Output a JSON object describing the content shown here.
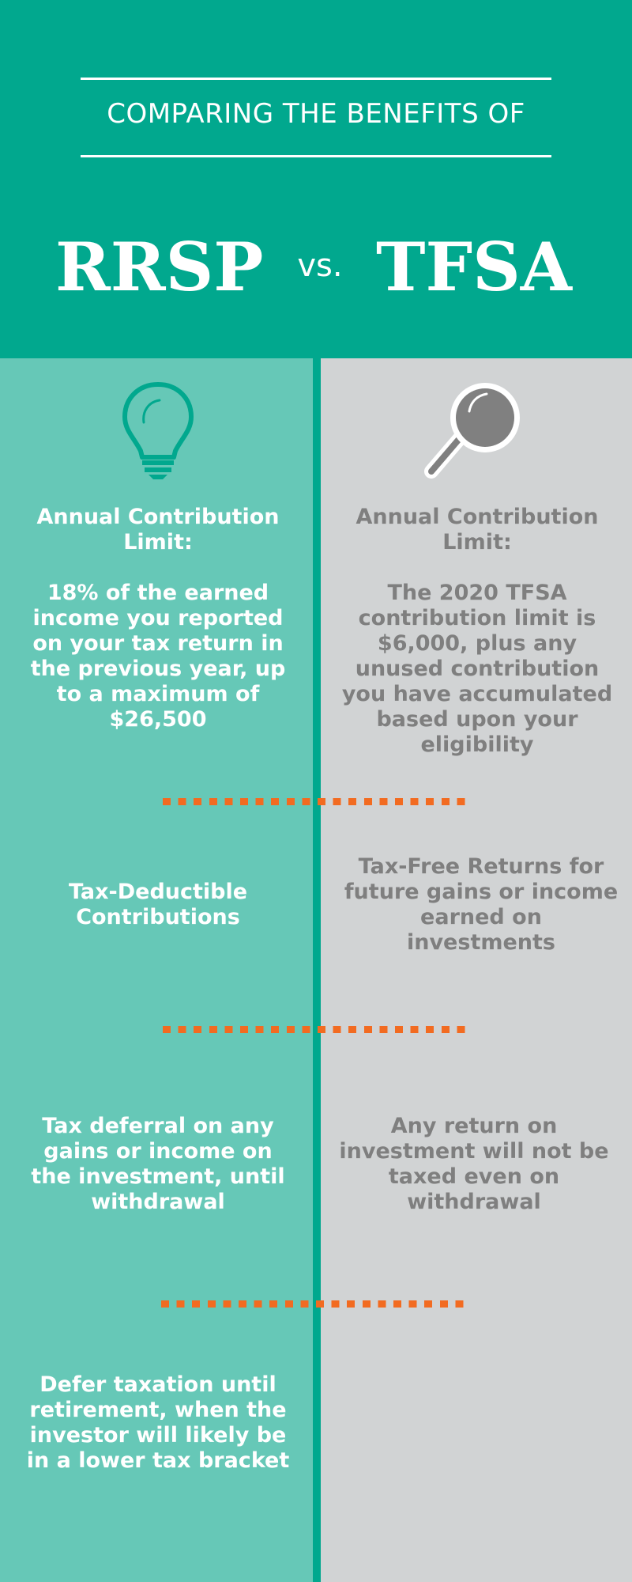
{
  "header": {
    "subtitle": "COMPARING THE BENEFITS OF",
    "left_title": "RRSP",
    "vs": "vs.",
    "right_title": "TFSA"
  },
  "icons": {
    "left": "lightbulb-icon",
    "right": "magnifying-glass-icon"
  },
  "colors": {
    "header_bg": "#01a88e",
    "left_column_bg": "#66c8b7",
    "right_column_bg": "#d1d3d4",
    "divider": "#01a88e",
    "dots": "#f26b21",
    "right_text": "#7f7f7f"
  },
  "rows": [
    {
      "left": "Annual Contribution\nLimit:\n\n18% of the earned\nincome you reported\non your tax return in\nthe previous year, up\nto a maximum of\n$26,500",
      "right": "Annual Contribution\nLimit:\n\nThe 2020 TFSA\ncontribution limit is\n$6,000, plus any\nunused contribution\nyou have accumulated\nbased upon your\neligibility"
    },
    {
      "left": "Tax-Deductible\nContributions",
      "right": "Tax-Free Returns for\nfuture gains or income\nearned on\ninvestments"
    },
    {
      "left": "Tax deferral on any\ngains or income on\nthe investment, until\nwithdrawal",
      "right": "Any return on\ninvestment will not be\ntaxed even on\nwithdrawal"
    },
    {
      "left": "Defer taxation until\nretirement, when the\ninvestor will likely be\nin a lower tax bracket",
      "right": ""
    }
  ]
}
